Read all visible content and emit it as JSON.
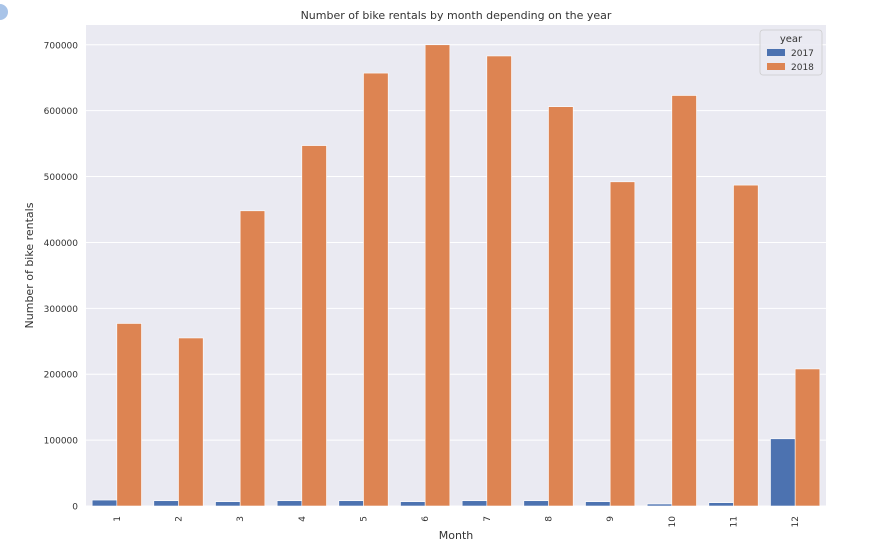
{
  "chart_data": {
    "type": "bar",
    "title": "Number of bike rentals by month depending on the year",
    "xlabel": "Month",
    "ylabel": "Number of bike rentals",
    "categories": [
      "1",
      "2",
      "3",
      "4",
      "5",
      "6",
      "7",
      "8",
      "9",
      "10",
      "11",
      "12"
    ],
    "series": [
      {
        "name": "2017",
        "color": "#4c72b0",
        "values": [
          9000,
          8000,
          6500,
          8000,
          8000,
          6500,
          8000,
          8000,
          6500,
          3000,
          5000,
          102000
        ]
      },
      {
        "name": "2018",
        "color": "#dd8452",
        "values": [
          277000,
          255000,
          448000,
          547000,
          657000,
          700000,
          683000,
          606000,
          492000,
          623000,
          487000,
          208000
        ]
      }
    ],
    "ylim": [
      0,
      730000
    ],
    "yticks": [
      0,
      100000,
      200000,
      300000,
      400000,
      500000,
      600000,
      700000
    ],
    "grid": true,
    "legend": {
      "title": "year",
      "placement": "top-right"
    },
    "style": {
      "plot_background": "#eaeaf2",
      "grid_color": "#ffffff"
    }
  }
}
